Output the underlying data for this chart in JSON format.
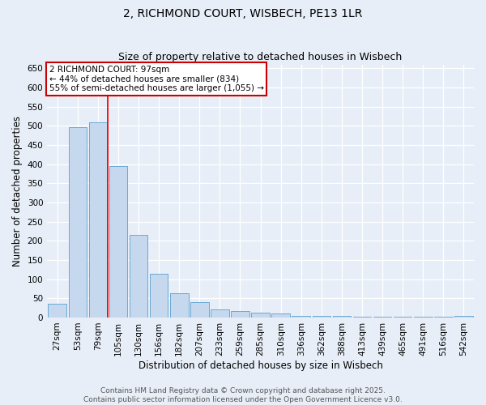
{
  "title_line1": "2, RICHMOND COURT, WISBECH, PE13 1LR",
  "title_line2": "Size of property relative to detached houses in Wisbech",
  "xlabel": "Distribution of detached houses by size in Wisbech",
  "ylabel": "Number of detached properties",
  "categories": [
    "27sqm",
    "53sqm",
    "79sqm",
    "105sqm",
    "130sqm",
    "156sqm",
    "182sqm",
    "207sqm",
    "233sqm",
    "259sqm",
    "285sqm",
    "310sqm",
    "336sqm",
    "362sqm",
    "388sqm",
    "413sqm",
    "439sqm",
    "465sqm",
    "491sqm",
    "516sqm",
    "542sqm"
  ],
  "values": [
    35,
    497,
    510,
    395,
    215,
    113,
    63,
    40,
    20,
    17,
    13,
    10,
    5,
    5,
    4,
    2,
    2,
    1,
    1,
    1,
    5
  ],
  "bar_color": "#c5d8ee",
  "bar_edge_color": "#6aaad4",
  "red_line_x": 2.5,
  "ylim": [
    0,
    660
  ],
  "yticks": [
    0,
    50,
    100,
    150,
    200,
    250,
    300,
    350,
    400,
    450,
    500,
    550,
    600,
    650
  ],
  "annotation_text": "2 RICHMOND COURT: 97sqm\n← 44% of detached houses are smaller (834)\n55% of semi-detached houses are larger (1,055) →",
  "annotation_box_color": "#ffffff",
  "annotation_box_edge": "#cc0000",
  "footer_line1": "Contains HM Land Registry data © Crown copyright and database right 2025.",
  "footer_line2": "Contains public sector information licensed under the Open Government Licence v3.0.",
  "background_color": "#e8eef7",
  "plot_bg_color": "#e8eef7",
  "grid_color": "#ffffff",
  "title_fontsize": 10,
  "subtitle_fontsize": 9,
  "axis_label_fontsize": 8.5,
  "tick_fontsize": 7.5,
  "annotation_fontsize": 7.5,
  "footer_fontsize": 6.5
}
